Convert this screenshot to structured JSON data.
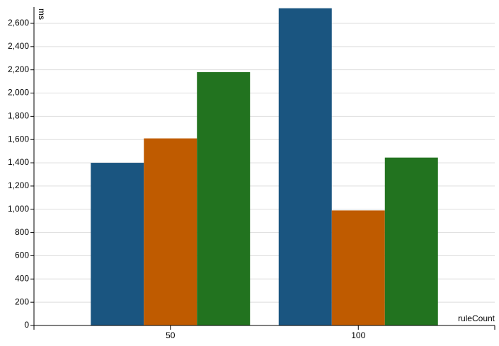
{
  "chart_data": {
    "type": "bar",
    "y_label": "ms",
    "x_label": "ruleCount",
    "categories": [
      "50",
      "100"
    ],
    "series": [
      {
        "color": "#1a5580",
        "values": [
          1400,
          2730
        ]
      },
      {
        "color": "#bf5b00",
        "values": [
          1610,
          990
        ]
      },
      {
        "color": "#22731f",
        "values": [
          2180,
          1445
        ]
      }
    ],
    "ylim": [
      0,
      2740
    ],
    "yticks": [
      0,
      200,
      400,
      600,
      800,
      {
        "value": 1000,
        "label": "1,000"
      },
      {
        "value": 1200,
        "label": "1,200"
      },
      {
        "value": 1400,
        "label": "1,400"
      },
      {
        "value": 1600,
        "label": "1,600"
      },
      {
        "value": 1800,
        "label": "1,800"
      },
      {
        "value": 2000,
        "label": "2,000"
      },
      {
        "value": 2200,
        "label": "2,200"
      },
      {
        "value": 2400,
        "label": "2,400"
      },
      {
        "value": 2600,
        "label": "2,600"
      }
    ],
    "grid": true
  }
}
